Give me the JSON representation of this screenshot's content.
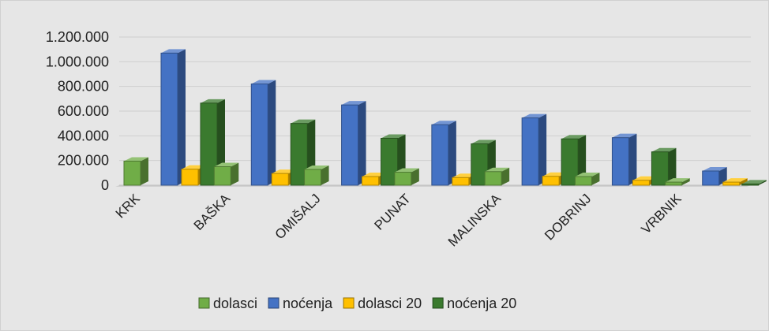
{
  "chart_data": {
    "type": "bar",
    "categories": [
      "KRK",
      "BAŠKA",
      "OMIŠALJ",
      "PUNAT",
      "MALINSKA",
      "DOBRINJ",
      "VRBNIK"
    ],
    "series": [
      {
        "name": "dolasci",
        "color": "#70ad47",
        "values": [
          195000,
          150000,
          128000,
          105000,
          110000,
          70000,
          25000
        ]
      },
      {
        "name": "noćenja",
        "color": "#4472c4",
        "values": [
          1070000,
          820000,
          650000,
          490000,
          545000,
          385000,
          115000
        ]
      },
      {
        "name": "dolasci 20",
        "color": "#ffc000",
        "values": [
          130000,
          95000,
          70000,
          62000,
          72000,
          40000,
          25000
        ]
      },
      {
        "name": "noćenja 20",
        "color": "#3a7a2e",
        "values": [
          665000,
          500000,
          380000,
          335000,
          375000,
          270000,
          10000
        ]
      }
    ],
    "yticks": [
      "0",
      "200.000",
      "400.000",
      "600.000",
      "800.000",
      "1.000.000",
      "1.200.000"
    ],
    "ylim": [
      0,
      1200000
    ],
    "legend_position": "bottom",
    "grid": true,
    "style": "3d-clustered-column"
  }
}
